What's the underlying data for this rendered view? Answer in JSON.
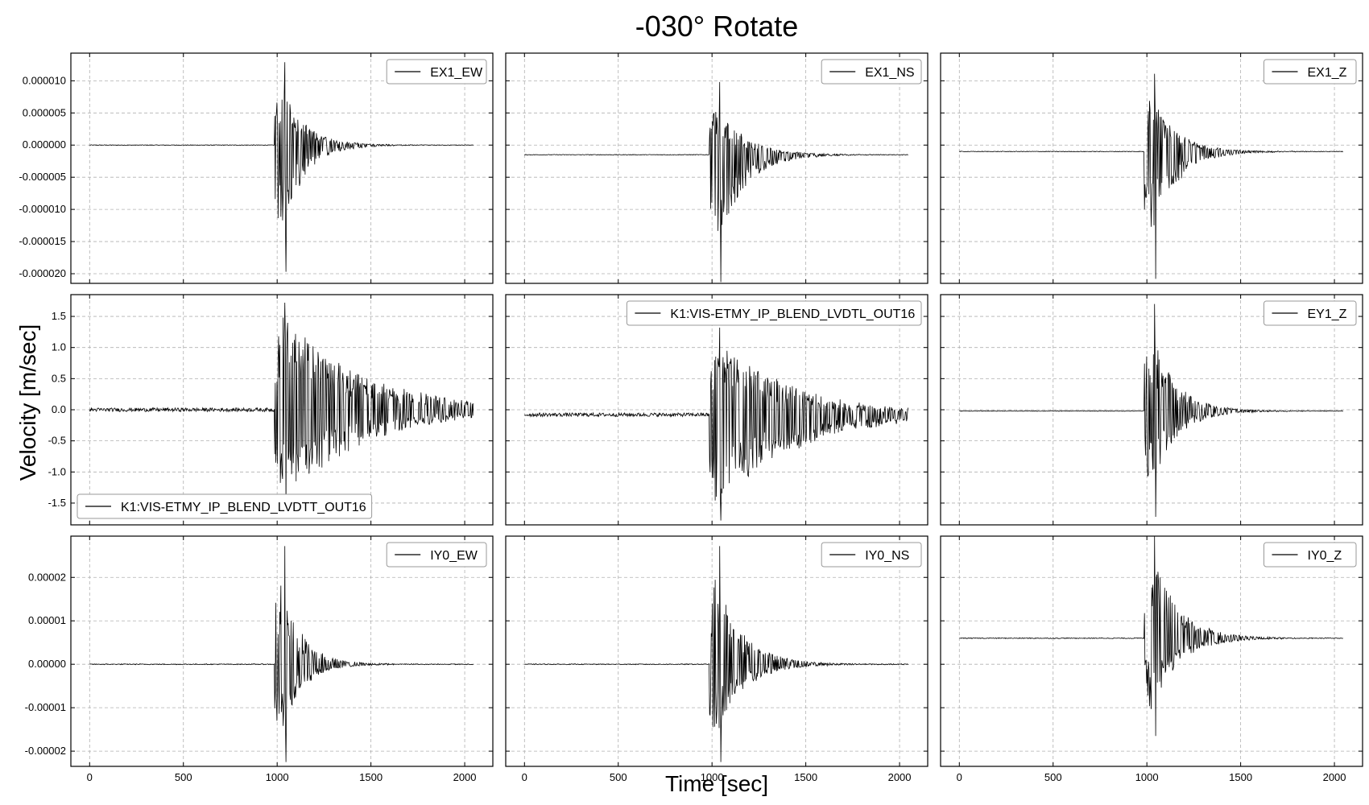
{
  "figure": {
    "title": "-030° Rotate",
    "ylabel": "Velocity [m/sec]",
    "xlabel": "Time [sec]"
  },
  "chart_data": [
    {
      "type": "line",
      "legend": "EX1_EW",
      "legend_loc": "upper-right",
      "ylim": [
        -2.15e-05,
        1.43e-05
      ],
      "ytick_values": [
        1e-05,
        5e-06,
        0,
        -5e-06,
        -1e-05,
        -1.5e-05,
        -2e-05
      ],
      "ytick_labels": [
        "0.000010",
        "0.000005",
        "0.000000",
        "-0.000005",
        "-0.000010",
        "-0.000015",
        "-0.000020"
      ],
      "show_ytick_labels": true,
      "show_xtick_labels": false,
      "baseline": 0,
      "noise": 5e-08,
      "peak_pos": 1.29e-05,
      "peak_neg": -1.97e-05,
      "decay": 120
    },
    {
      "type": "line",
      "legend": "EX1_NS",
      "legend_loc": "upper-right",
      "ylim": [
        -2.15e-05,
        1.43e-05
      ],
      "ytick_values": [
        1e-05,
        5e-06,
        0,
        -5e-06,
        -1e-05,
        -1.5e-05,
        -2e-05
      ],
      "ytick_labels": [],
      "show_ytick_labels": false,
      "show_xtick_labels": false,
      "baseline": -1.5e-06,
      "noise": 5e-08,
      "peak_pos": 1.13e-05,
      "peak_neg": -1.98e-05,
      "decay": 140
    },
    {
      "type": "line",
      "legend": "EX1_Z",
      "legend_loc": "upper-right",
      "ylim": [
        -2.15e-05,
        1.43e-05
      ],
      "ytick_values": [
        1e-05,
        5e-06,
        0,
        -5e-06,
        -1e-05,
        -1.5e-05,
        -2e-05
      ],
      "ytick_labels": [],
      "show_ytick_labels": false,
      "show_xtick_labels": false,
      "baseline": -1e-06,
      "noise": 5e-08,
      "peak_pos": 1.21e-05,
      "peak_neg": -1.98e-05,
      "decay": 130
    },
    {
      "type": "line",
      "legend": "K1:VIS-ETMY_IP_BLEND_LVDTT_OUT16",
      "legend_loc": "lower-left",
      "ylim": [
        -1.85,
        1.85
      ],
      "ytick_values": [
        1.5,
        1.0,
        0.5,
        0.0,
        -0.5,
        -1.0,
        -1.5
      ],
      "ytick_labels": [
        "1.5",
        "1.0",
        "0.5",
        "0.0",
        "-0.5",
        "-1.0",
        "-1.5"
      ],
      "show_ytick_labels": true,
      "show_xtick_labels": false,
      "baseline": 0,
      "noise": 0.03,
      "peak_pos": 1.72,
      "peak_neg": -1.7,
      "decay": 420
    },
    {
      "type": "line",
      "legend": "K1:VIS-ETMY_IP_BLEND_LVDTL_OUT16",
      "legend_loc": "upper-right",
      "ylim": [
        -1.85,
        1.85
      ],
      "ytick_values": [
        1.5,
        1.0,
        0.5,
        0.0,
        -0.5,
        -1.0,
        -1.5
      ],
      "ytick_labels": [],
      "show_ytick_labels": false,
      "show_xtick_labels": false,
      "baseline": -0.08,
      "noise": 0.03,
      "peak_pos": 1.4,
      "peak_neg": -1.7,
      "decay": 400
    },
    {
      "type": "line",
      "legend": "EY1_Z",
      "legend_loc": "upper-right",
      "ylim": [
        -1.85,
        1.85
      ],
      "ytick_values": [
        1.5,
        1.0,
        0.5,
        0.0,
        -0.5,
        -1.0,
        -1.5
      ],
      "ytick_labels": [],
      "show_ytick_labels": false,
      "show_xtick_labels": false,
      "baseline": -0.02,
      "noise": 0.005,
      "peak_pos": 1.72,
      "peak_neg": -1.7,
      "decay": 130
    },
    {
      "type": "line",
      "legend": "IY0_EW",
      "legend_loc": "upper-right",
      "ylim": [
        -2.35e-05,
        2.95e-05
      ],
      "ytick_values": [
        2e-05,
        1e-05,
        0,
        -1e-05,
        -2e-05
      ],
      "ytick_labels": [
        "0.00002",
        "0.00001",
        "0.00000",
        "-0.00001",
        "-0.00002"
      ],
      "show_ytick_labels": true,
      "show_xtick_labels": true,
      "baseline": 0,
      "noise": 1e-07,
      "peak_pos": 2.72e-05,
      "peak_neg": -2.25e-05,
      "decay": 110
    },
    {
      "type": "line",
      "legend": "IY0_NS",
      "legend_loc": "upper-right",
      "ylim": [
        -2.35e-05,
        2.95e-05
      ],
      "ytick_values": [
        2e-05,
        1e-05,
        0,
        -1e-05,
        -2e-05
      ],
      "ytick_labels": [],
      "show_ytick_labels": false,
      "show_xtick_labels": true,
      "baseline": 0,
      "noise": 1e-07,
      "peak_pos": 2.72e-05,
      "peak_neg": -2.25e-05,
      "decay": 140
    },
    {
      "type": "line",
      "legend": "IY0_Z",
      "legend_loc": "upper-right",
      "ylim": [
        -2.35e-05,
        2.95e-05
      ],
      "ytick_values": [
        2e-05,
        1e-05,
        0,
        -1e-05,
        -2e-05
      ],
      "ytick_labels": [],
      "show_ytick_labels": false,
      "show_xtick_labels": true,
      "baseline": 6e-06,
      "noise": 1e-07,
      "peak_pos": 2.72e-05,
      "peak_neg": -2.25e-05,
      "decay": 140
    }
  ],
  "x_axis": {
    "xlim": [
      -100,
      2150
    ],
    "tick_values": [
      0,
      500,
      1000,
      1500,
      2000
    ],
    "tick_labels": [
      "0",
      "500",
      "1000",
      "1500",
      "2000"
    ],
    "signal_start": 0,
    "signal_end": 2048,
    "onset": 985
  },
  "grid": true
}
